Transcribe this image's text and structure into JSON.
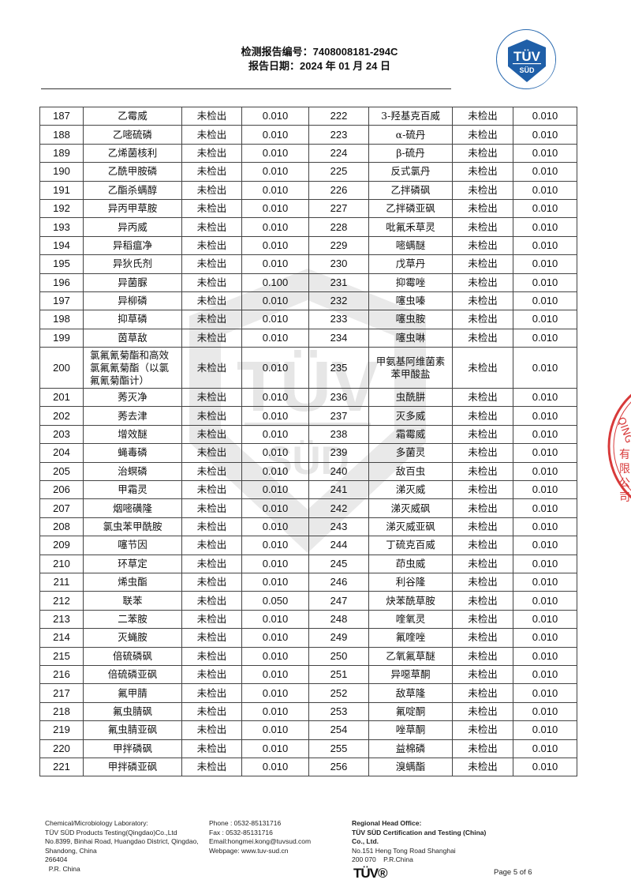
{
  "header": {
    "report_no": "检测报告编号：7408008181-294C",
    "report_date": "报告日期：2024 年 01 月 24 日",
    "logo_text": "TÜV SÜD",
    "brand_color": "#1f5fa8"
  },
  "rows": [
    [
      "187",
      "乙霉威",
      "未检出",
      "0.010",
      "222",
      "3-羟基克百威",
      "未检出",
      "0.010"
    ],
    [
      "188",
      "乙嘧硫磷",
      "未检出",
      "0.010",
      "223",
      "α-硫丹",
      "未检出",
      "0.010"
    ],
    [
      "189",
      "乙烯菌核利",
      "未检出",
      "0.010",
      "224",
      "β-硫丹",
      "未检出",
      "0.010"
    ],
    [
      "190",
      "乙酰甲胺磷",
      "未检出",
      "0.010",
      "225",
      "反式氯丹",
      "未检出",
      "0.010"
    ],
    [
      "191",
      "乙酯杀螨醇",
      "未检出",
      "0.010",
      "226",
      "乙拌磷砜",
      "未检出",
      "0.010"
    ],
    [
      "192",
      "异丙甲草胺",
      "未检出",
      "0.010",
      "227",
      "乙拌磷亚砜",
      "未检出",
      "0.010"
    ],
    [
      "193",
      "异丙威",
      "未检出",
      "0.010",
      "228",
      "吡氟禾草灵",
      "未检出",
      "0.010"
    ],
    [
      "194",
      "异稻瘟净",
      "未检出",
      "0.010",
      "229",
      "嘧螨醚",
      "未检出",
      "0.010"
    ],
    [
      "195",
      "异狄氏剂",
      "未检出",
      "0.010",
      "230",
      "戊草丹",
      "未检出",
      "0.010"
    ],
    [
      "196",
      "异菌脲",
      "未检出",
      "0.100",
      "231",
      "抑霉唑",
      "未检出",
      "0.010"
    ],
    [
      "197",
      "异柳磷",
      "未检出",
      "0.010",
      "232",
      "噻虫嗪",
      "未检出",
      "0.010"
    ],
    [
      "198",
      "抑草磷",
      "未检出",
      "0.010",
      "233",
      "噻虫胺",
      "未检出",
      "0.010"
    ],
    [
      "199",
      "茵草敌",
      "未检出",
      "0.010",
      "234",
      "噻虫啉",
      "未检出",
      "0.010"
    ],
    [
      "200",
      "氯氟氰菊酯和高效氯氟氰菊酯（以氯氟氰菊酯计）",
      "未检出",
      "0.010",
      "235",
      "甲氨基阿维菌素苯甲酸盐",
      "未检出",
      "0.010"
    ],
    [
      "201",
      "莠灭净",
      "未检出",
      "0.010",
      "236",
      "虫酰肼",
      "未检出",
      "0.010"
    ],
    [
      "202",
      "莠去津",
      "未检出",
      "0.010",
      "237",
      "灭多威",
      "未检出",
      "0.010"
    ],
    [
      "203",
      "增效醚",
      "未检出",
      "0.010",
      "238",
      "霜霉威",
      "未检出",
      "0.010"
    ],
    [
      "204",
      "蝇毒磷",
      "未检出",
      "0.010",
      "239",
      "多菌灵",
      "未检出",
      "0.010"
    ],
    [
      "205",
      "治螟磷",
      "未检出",
      "0.010",
      "240",
      "敌百虫",
      "未检出",
      "0.010"
    ],
    [
      "206",
      "甲霜灵",
      "未检出",
      "0.010",
      "241",
      "涕灭威",
      "未检出",
      "0.010"
    ],
    [
      "207",
      "烟嘧磺隆",
      "未检出",
      "0.010",
      "242",
      "涕灭威砜",
      "未检出",
      "0.010"
    ],
    [
      "208",
      "氯虫苯甲酰胺",
      "未检出",
      "0.010",
      "243",
      "涕灭威亚砜",
      "未检出",
      "0.010"
    ],
    [
      "209",
      "噻节因",
      "未检出",
      "0.010",
      "244",
      "丁硫克百威",
      "未检出",
      "0.010"
    ],
    [
      "210",
      "环草定",
      "未检出",
      "0.010",
      "245",
      "茚虫威",
      "未检出",
      "0.010"
    ],
    [
      "211",
      "烯虫酯",
      "未检出",
      "0.010",
      "246",
      "利谷隆",
      "未检出",
      "0.010"
    ],
    [
      "212",
      "联苯",
      "未检出",
      "0.050",
      "247",
      "炔苯酰草胺",
      "未检出",
      "0.010"
    ],
    [
      "213",
      "二苯胺",
      "未检出",
      "0.010",
      "248",
      "喹氧灵",
      "未检出",
      "0.010"
    ],
    [
      "214",
      "灭蝇胺",
      "未检出",
      "0.010",
      "249",
      "氟喹唑",
      "未检出",
      "0.010"
    ],
    [
      "215",
      "倍硫磷砜",
      "未检出",
      "0.010",
      "250",
      "乙氧氟草醚",
      "未检出",
      "0.010"
    ],
    [
      "216",
      "倍硫磷亚砜",
      "未检出",
      "0.010",
      "251",
      "异噁草酮",
      "未检出",
      "0.010"
    ],
    [
      "217",
      "氟甲腈",
      "未检出",
      "0.010",
      "252",
      "敌草隆",
      "未检出",
      "0.010"
    ],
    [
      "218",
      "氟虫腈砜",
      "未检出",
      "0.010",
      "253",
      "氟啶酮",
      "未检出",
      "0.010"
    ],
    [
      "219",
      "氟虫腈亚砜",
      "未检出",
      "0.010",
      "254",
      "唑草酮",
      "未检出",
      "0.010"
    ],
    [
      "220",
      "甲拌磷砜",
      "未检出",
      "0.010",
      "255",
      "益棉磷",
      "未检出",
      "0.010"
    ],
    [
      "221",
      "甲拌磷亚砜",
      "未检出",
      "0.010",
      "256",
      "溴螨酯",
      "未检出",
      "0.010"
    ]
  ],
  "footer": {
    "lab": [
      "Chemical/Microbiology Laboratory:",
      "TÜV SÜD Products Testing(Qingdao)Co.,Ltd",
      "No.8399, Binhai Road, Huangdao District, Qingdao,",
      "Shandong, China",
      "266404",
      "  P.R. China"
    ],
    "contact": [
      "Phone : 0532-85131716",
      "Fax : 0532-85131716",
      "Email:hongmei.kong@tuvsud.com",
      "Webpage: www.tuv-sud.cn"
    ],
    "office_title": "Regional Head Office:",
    "office_name": [
      "TÜV SÜD Certification and Testing (China)",
      "Co., Ltd."
    ],
    "office_addr": [
      "No.151 Heng Tong Road Shanghai",
      "200 070    P.R.China"
    ],
    "tuv_mark": "TÜV®",
    "page": "Page 5 of 6"
  },
  "stamp_text": "QING…有限公司…章",
  "stamp_color": "#d83a3a"
}
